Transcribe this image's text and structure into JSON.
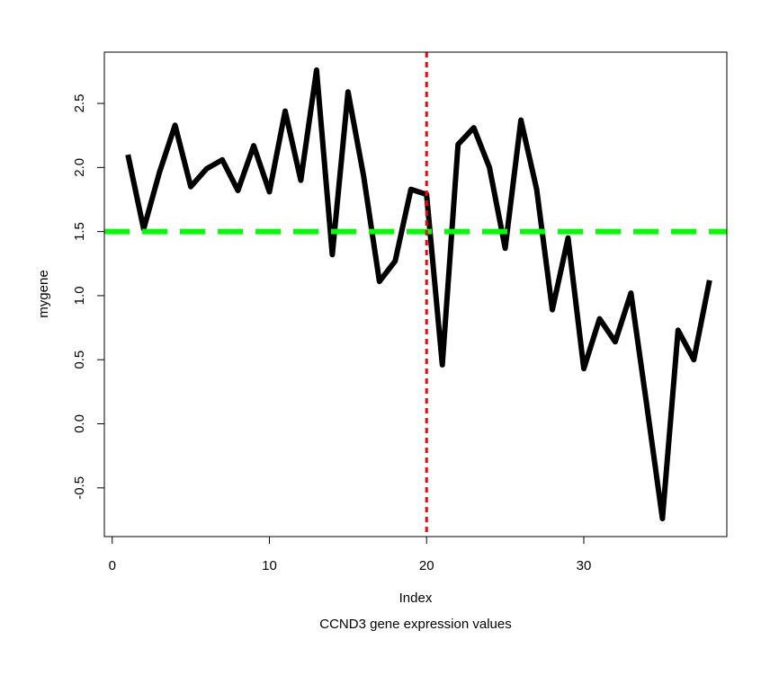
{
  "chart_data": {
    "type": "line",
    "xlabel": "Index",
    "ylabel": "mygene",
    "subtitle": "CCND3 gene expression values",
    "xlim": [
      -0.5,
      39.1
    ],
    "ylim": [
      -0.88,
      2.9
    ],
    "xticks": [
      0,
      10,
      20,
      30
    ],
    "yticks": [
      -0.5,
      0.0,
      0.5,
      1.0,
      1.5,
      2.0,
      2.5
    ],
    "ytick_labels": [
      "-0.5",
      "0.0",
      "0.5",
      "1.0",
      "1.5",
      "2.0",
      "2.5"
    ],
    "grid": false,
    "series": [
      {
        "color": "#000000",
        "x": [
          1,
          2,
          3,
          4,
          5,
          6,
          7,
          8,
          9,
          10,
          11,
          12,
          13,
          14,
          15,
          16,
          17,
          18,
          19,
          20,
          21,
          22,
          23,
          24,
          25,
          26,
          27,
          28,
          29,
          30,
          31,
          32,
          33,
          34,
          35,
          36,
          37,
          38
        ],
        "values": [
          2.1,
          1.52,
          1.96,
          2.33,
          1.85,
          1.99,
          2.06,
          1.82,
          2.17,
          1.81,
          2.44,
          1.9,
          2.76,
          1.32,
          2.59,
          1.93,
          1.11,
          1.27,
          1.83,
          1.79,
          0.46,
          2.18,
          2.31,
          2.0,
          1.37,
          2.37,
          1.83,
          0.89,
          1.45,
          0.43,
          0.82,
          0.64,
          1.02,
          0.15,
          -0.74,
          0.73,
          0.5,
          1.12
        ]
      }
    ],
    "hline": {
      "y": 1.5,
      "color": "#00ff00",
      "style": "dashed"
    },
    "vline": {
      "x": 20.0,
      "color": "#ff0000",
      "style": "dotted"
    }
  }
}
